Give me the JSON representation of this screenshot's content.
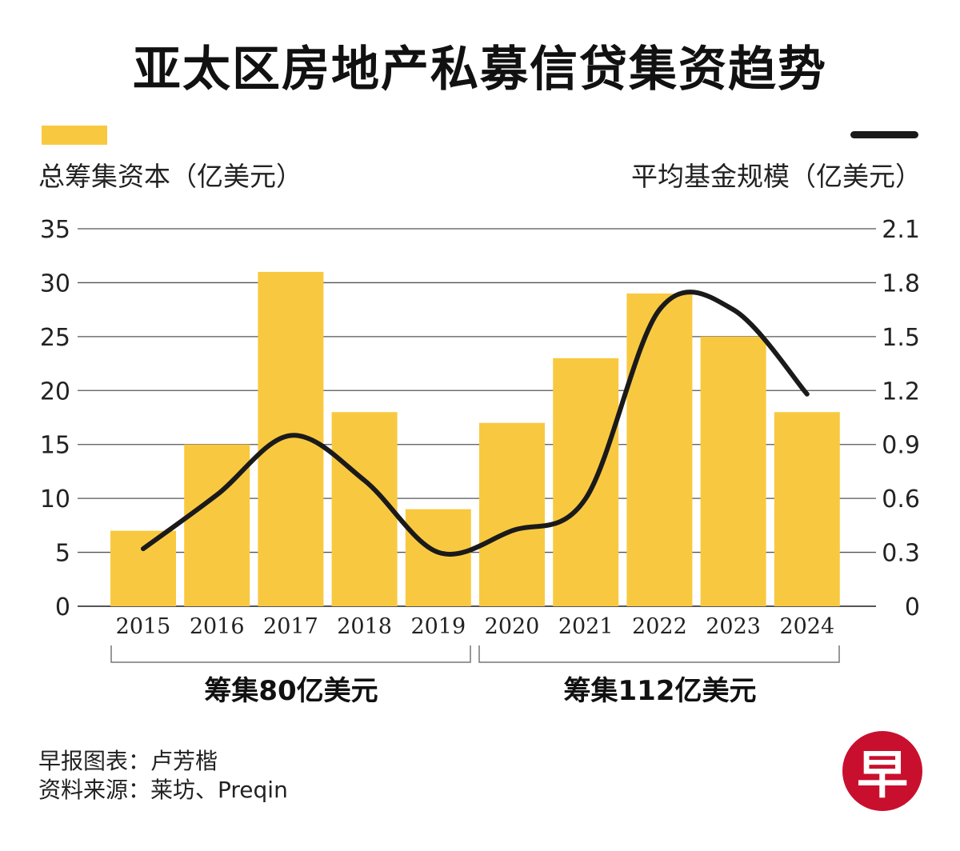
{
  "title": "亚太区房地产私募信贷集资趋势",
  "legend": {
    "bars": "总筹集资本（亿美元）",
    "line": "平均基金规模（亿美元）"
  },
  "periods": [
    {
      "label": "筹集80亿美元",
      "from": "2015",
      "to": "2019"
    },
    {
      "label": "筹集112亿美元",
      "from": "2020",
      "to": "2024"
    }
  ],
  "credits": {
    "chart_by": "早报图表：卢芳楷",
    "source": "资料来源：莱坊、Preqin"
  },
  "logo_text": "早",
  "colors": {
    "bar": "#F8C940",
    "line": "#1a1a1a",
    "grid": "#555555",
    "logo": "#C8102E"
  },
  "chart_data": {
    "type": "bar",
    "title": "亚太区房地产私募信贷集资趋势",
    "categories": [
      "2015",
      "2016",
      "2017",
      "2018",
      "2019",
      "2020",
      "2021",
      "2022",
      "2023",
      "2024"
    ],
    "series": [
      {
        "name": "总筹集资本（亿美元）",
        "type": "bar",
        "axis": "left",
        "values": [
          7,
          15,
          31,
          18,
          9,
          17,
          23,
          29,
          25,
          18
        ]
      },
      {
        "name": "平均基金规模（亿美元）",
        "type": "line",
        "axis": "right",
        "values": [
          0.32,
          0.62,
          0.95,
          0.7,
          0.3,
          0.42,
          0.6,
          1.65,
          1.65,
          1.18
        ]
      }
    ],
    "y_left": {
      "ylim": [
        0,
        35
      ],
      "ticks": [
        "0",
        "5",
        "10",
        "15",
        "20",
        "25",
        "30",
        "35"
      ]
    },
    "y_right": {
      "ylim": [
        0,
        2.1
      ],
      "ticks": [
        "0",
        "0.3",
        "0.6",
        "0.9",
        "1.2",
        "1.5",
        "1.8",
        "2.1"
      ]
    },
    "grid": true
  }
}
